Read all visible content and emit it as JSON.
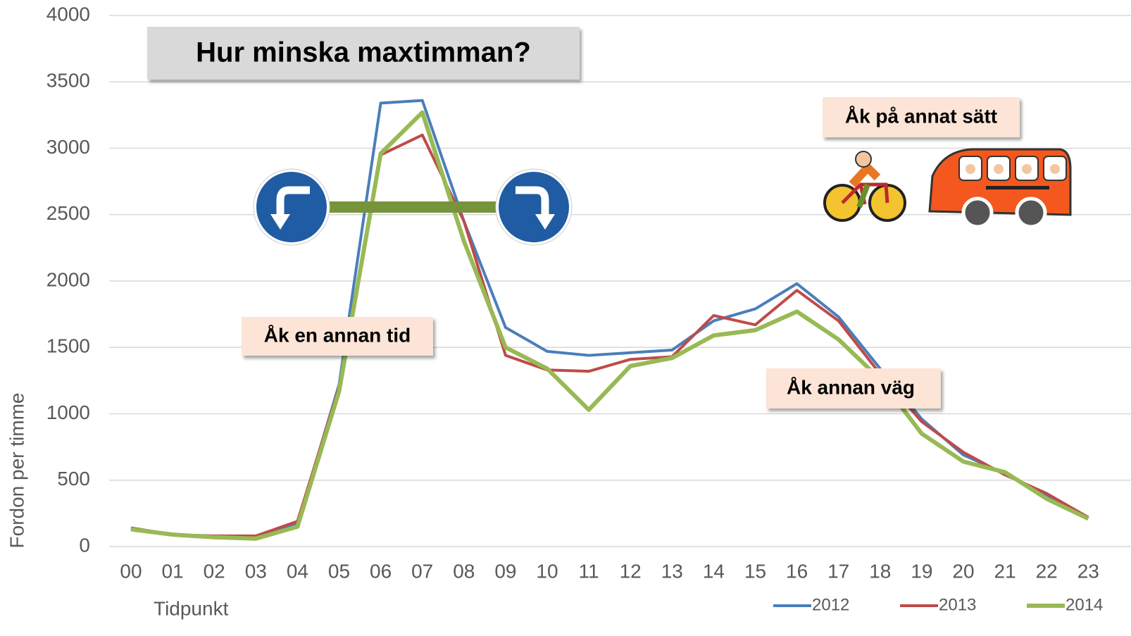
{
  "chart_data": {
    "type": "line",
    "title": "Hur minska maxtimman?",
    "x_label": "Tidpunkt",
    "y_label": "Fordon per timme",
    "annotations": [
      "Åk en annan tid",
      "Åk på annat sätt",
      "Åk annan väg"
    ],
    "categories": [
      "00",
      "01",
      "02",
      "03",
      "04",
      "05",
      "06",
      "07",
      "08",
      "09",
      "10",
      "11",
      "12",
      "13",
      "14",
      "15",
      "16",
      "17",
      "18",
      "19",
      "20",
      "21",
      "22",
      "23"
    ],
    "series": [
      {
        "name": "2012",
        "color": "#4a7ebb",
        "values": [
          140,
          90,
          70,
          70,
          170,
          1220,
          3340,
          3360,
          2450,
          1650,
          1470,
          1440,
          1460,
          1480,
          1700,
          1790,
          1980,
          1730,
          1340,
          960,
          690,
          550,
          390,
          220
        ]
      },
      {
        "name": "2013",
        "color": "#be4b48",
        "values": [
          140,
          90,
          80,
          80,
          190,
          1200,
          2950,
          3100,
          2450,
          1440,
          1330,
          1320,
          1410,
          1430,
          1740,
          1670,
          1930,
          1700,
          1300,
          940,
          710,
          540,
          400,
          220
        ]
      },
      {
        "name": "2014",
        "color": "#98b954",
        "values": [
          130,
          90,
          70,
          60,
          150,
          1170,
          2960,
          3270,
          2300,
          1500,
          1340,
          1030,
          1360,
          1420,
          1590,
          1630,
          1770,
          1560,
          1260,
          850,
          640,
          560,
          360,
          210
        ]
      }
    ],
    "ylim": [
      0,
      4000
    ],
    "yticks": [
      0,
      500,
      1000,
      1500,
      2000,
      2500,
      3000,
      3500,
      4000
    ],
    "grid": true,
    "legend": "bottom-right"
  }
}
